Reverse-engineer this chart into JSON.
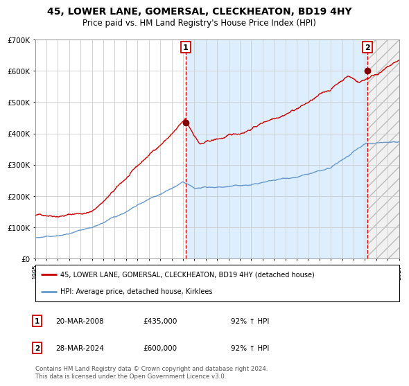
{
  "title": "45, LOWER LANE, GOMERSAL, CLECKHEATON, BD19 4HY",
  "subtitle": "Price paid vs. HM Land Registry's House Price Index (HPI)",
  "x_start_year": 1995,
  "x_end_year": 2027,
  "y_min": 0,
  "y_max": 700000,
  "y_ticks": [
    0,
    100000,
    200000,
    300000,
    400000,
    500000,
    600000,
    700000
  ],
  "y_tick_labels": [
    "£0",
    "£100K",
    "£200K",
    "£300K",
    "£400K",
    "£500K",
    "£600K",
    "£700K"
  ],
  "sale1_date": 2008.22,
  "sale1_price": 435000,
  "sale2_date": 2024.23,
  "sale2_price": 600000,
  "legend_red_label": "45, LOWER LANE, GOMERSAL, CLECKHEATON, BD19 4HY (detached house)",
  "legend_blue_label": "HPI: Average price, detached house, Kirklees",
  "footer": "Contains HM Land Registry data © Crown copyright and database right 2024.\nThis data is licensed under the Open Government Licence v3.0.",
  "red_line_color": "#cc0000",
  "blue_line_color": "#6699cc",
  "highlight_color": "#ddeeff",
  "grid_color": "#cccccc",
  "background_color": "#ffffff"
}
